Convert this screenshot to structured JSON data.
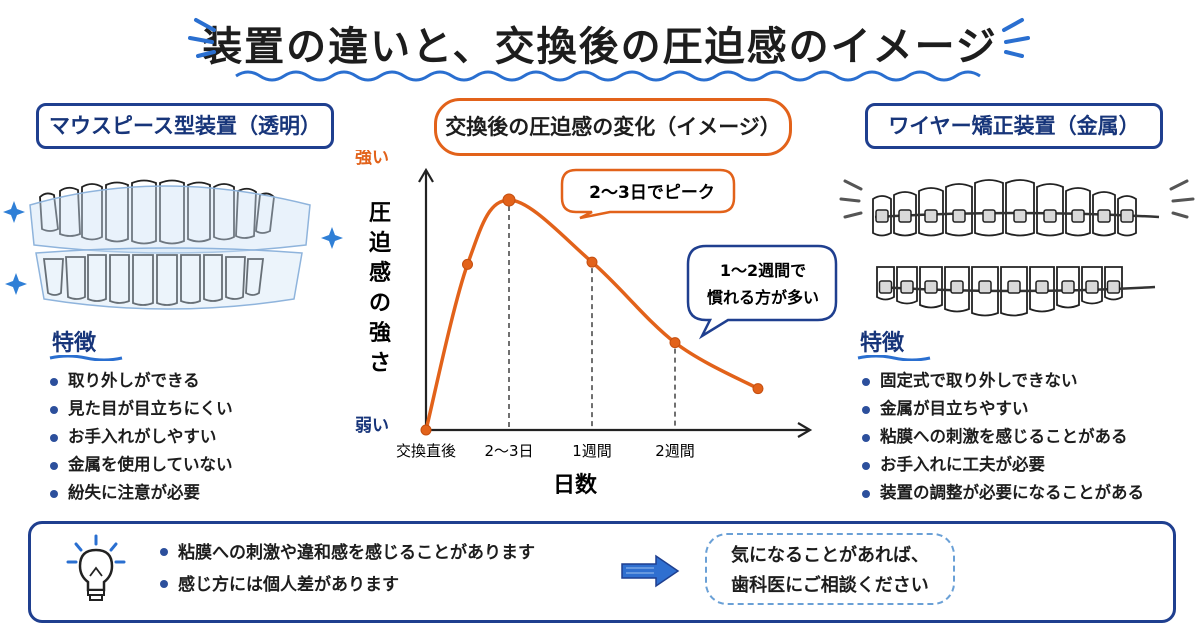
{
  "title": "装置の違いと、交換後の圧迫感のイメージ",
  "left_device": {
    "label": "マウスピース型装置（透明）",
    "features_heading": "特徴",
    "features": [
      "取り外しができる",
      "見た目が目立ちにくい",
      "お手入れがしやすい",
      "金属を使用していない",
      "紛失に注意が必要"
    ]
  },
  "right_device": {
    "label": "ワイヤー矯正装置（金属）",
    "features_heading": "特徴",
    "features": [
      "固定式で取り外しできない",
      "金属が目立ちやすい",
      "粘膜への刺激を感じることがある",
      "お手入れに工夫が必要",
      "装置の調整が必要になることがある"
    ]
  },
  "chart_title": "交換後の圧迫感の変化（イメージ）",
  "chart_data": {
    "type": "line",
    "title": "交換後の圧迫感の変化（イメージ）",
    "xlabel": "日数",
    "ylabel": "圧迫感の強さ",
    "y_high_label": "強い",
    "y_low_label": "弱い",
    "x_ticks": [
      "交換直後",
      "2〜3日",
      "1週間",
      "2週間"
    ],
    "x_tick_positions": [
      0,
      1,
      2,
      3
    ],
    "points": [
      {
        "x": 0,
        "y": 0
      },
      {
        "x": 0.5,
        "y": 0.72
      },
      {
        "x": 1,
        "y": 1.0
      },
      {
        "x": 2,
        "y": 0.73
      },
      {
        "x": 3,
        "y": 0.38
      },
      {
        "x": 4,
        "y": 0.18
      }
    ],
    "ylim": [
      0,
      1.15
    ],
    "xlim": [
      0,
      4.7
    ],
    "annotations": [
      "2〜3日でピーク",
      "1〜2週間で慣れる方が多い"
    ],
    "line_color": "#e2621a",
    "guide_color": "#333333"
  },
  "annotations": {
    "peak": "2〜3日でピーク",
    "adapt_line1": "1〜2週間で",
    "adapt_line2": "慣れる方が多い"
  },
  "bottom": {
    "notes": [
      "粘膜への刺激や違和感を感じることがあります",
      "感じ方には個人差があります"
    ],
    "advice_line1": "気になることがあれば、",
    "advice_line2": "歯科医にご相談ください"
  },
  "colors": {
    "accent_blue": "#1f3f8f",
    "accent_orange": "#e2621a",
    "light_blue": "#6aa0d6"
  },
  "icons": [
    "sparkle-icon",
    "lightbulb-icon",
    "arrow-right-icon",
    "motion-lines-icon"
  ]
}
